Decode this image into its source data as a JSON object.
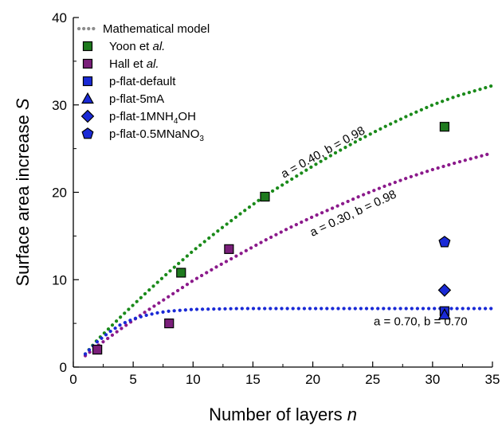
{
  "chart_data": {
    "type": "scatter",
    "xlabel": "Number of layers",
    "xlabel_var": "n",
    "ylabel": "Surface area increase",
    "ylabel_var": "S",
    "xlim": [
      0,
      35
    ],
    "ylim": [
      0,
      40
    ],
    "xticks": [
      "0",
      "5",
      "10",
      "15",
      "20",
      "25",
      "30",
      "35"
    ],
    "yticks": [
      "0",
      "10",
      "20",
      "30",
      "40"
    ],
    "grid": false,
    "legend_position": "top-left",
    "model_label": "Mathematical model",
    "models": [
      {
        "annotation": "a = 0.40, b = 0.98",
        "color": "#1a8a1a",
        "x": [
          1,
          2,
          4,
          6,
          8,
          10,
          12,
          14,
          16,
          18,
          20,
          22,
          24,
          26,
          28,
          30,
          32,
          35
        ],
        "y": [
          1.5,
          3.1,
          5.8,
          8.4,
          10.9,
          13.3,
          15.5,
          17.6,
          19.6,
          21.3,
          23.0,
          24.6,
          26.1,
          27.5,
          28.8,
          30.0,
          31.0,
          32.2
        ]
      },
      {
        "annotation": "a = 0.30, b = 0.98",
        "color": "#8b1a8b",
        "x": [
          1,
          2,
          4,
          6,
          8,
          10,
          12,
          14,
          16,
          18,
          20,
          22,
          24,
          26,
          28,
          30,
          32,
          35
        ],
        "y": [
          1.3,
          2.4,
          4.4,
          6.3,
          8.1,
          9.9,
          11.5,
          13.0,
          14.5,
          15.9,
          17.2,
          18.4,
          19.6,
          20.7,
          21.7,
          22.6,
          23.4,
          24.5
        ]
      },
      {
        "annotation": "a = 0.70, b = 0.70",
        "color": "#1a2ad6",
        "x": [
          1,
          2,
          3,
          4,
          5,
          6,
          7,
          8,
          9,
          10,
          12,
          14,
          16,
          20,
          25,
          30,
          35
        ],
        "y": [
          1.5,
          2.9,
          4.0,
          4.9,
          5.5,
          5.9,
          6.2,
          6.4,
          6.5,
          6.6,
          6.65,
          6.7,
          6.7,
          6.7,
          6.7,
          6.7,
          6.7
        ]
      }
    ],
    "series": [
      {
        "name": "Yoon et al.",
        "name_plain": "Yoon et ",
        "name_italic": "al.",
        "marker": "square",
        "color": "#1e7a1e",
        "points": [
          [
            2,
            2
          ],
          [
            9,
            10.8
          ],
          [
            16,
            19.5
          ],
          [
            31,
            27.5
          ]
        ]
      },
      {
        "name": "Hall et al.",
        "name_plain": "Hall et ",
        "name_italic": "al.",
        "marker": "square",
        "color": "#7a1f7a",
        "points": [
          [
            2,
            2
          ],
          [
            8,
            5
          ],
          [
            13,
            13.5
          ]
        ]
      },
      {
        "name": "p-flat-default",
        "marker": "square",
        "color": "#1a2ad6",
        "points": [
          [
            31,
            6.4
          ]
        ]
      },
      {
        "name": "p-flat-5mA",
        "marker": "triangle",
        "color": "#1a2ad6",
        "points": [
          [
            31,
            6.0
          ]
        ]
      },
      {
        "name": "p-flat-1MNH4OH",
        "name_parts": [
          "p-flat-1MNH",
          "4",
          "OH"
        ],
        "marker": "diamond",
        "color": "#1a2ad6",
        "points": [
          [
            31,
            8.8
          ]
        ]
      },
      {
        "name": "p-flat-0.5MNaNO3",
        "name_parts": [
          "p-flat-0.5MNaNO",
          "3",
          ""
        ],
        "marker": "pentagon",
        "color": "#1a2ad6",
        "points": [
          [
            31,
            14.3
          ]
        ]
      }
    ]
  }
}
